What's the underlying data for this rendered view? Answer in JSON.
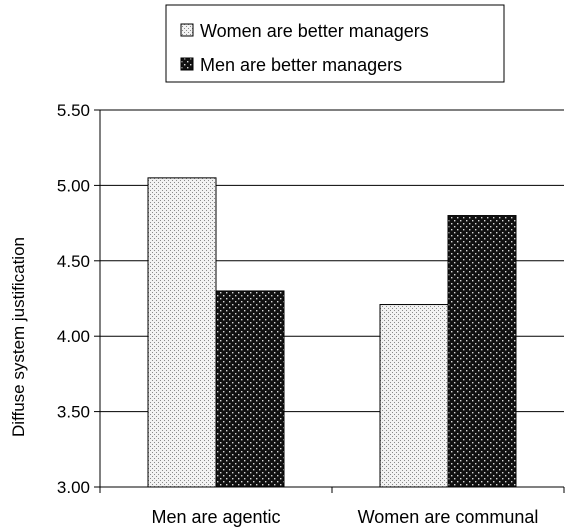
{
  "chart_data": {
    "type": "bar",
    "categories": [
      "Men are agentic",
      "Women are communal"
    ],
    "series": [
      {
        "name": "Women are better managers",
        "values": [
          5.05,
          4.21
        ],
        "pattern": "light-dots"
      },
      {
        "name": "Men are better managers",
        "values": [
          4.3,
          4.8
        ],
        "pattern": "dark-dots"
      }
    ],
    "xlabel": "",
    "ylabel": "Diffuse system justification",
    "ylim": [
      3.0,
      5.5
    ],
    "yticks": [
      "3.00",
      "3.50",
      "4.00",
      "4.50",
      "5.00",
      "5.50"
    ],
    "grid": true,
    "legend": "top-center",
    "colors": {
      "light_fill": "#f2f2f2",
      "light_dot": "#8a8a8a",
      "dark_fill": "#111111",
      "dark_dot": "#d8d8d8",
      "grid": "#000000"
    }
  }
}
